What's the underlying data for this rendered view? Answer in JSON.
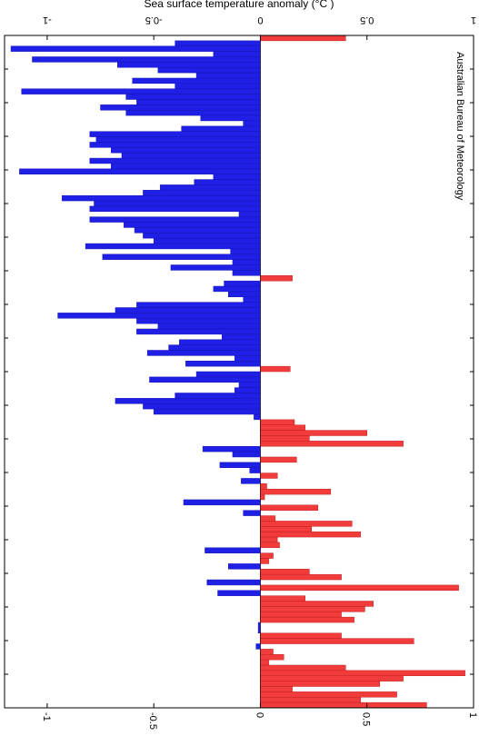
{
  "chart_data": {
    "type": "bar",
    "orientation": "horizontal",
    "title": "Sea surface temperature anomaly (°C )",
    "annotation": "Australian Bureau of Meteorology",
    "xlim": [
      -1.2,
      1.0
    ],
    "xticks": [
      -1,
      -0.5,
      0,
      0.5,
      1
    ],
    "xtick_labels": [
      "-1",
      "-0.5",
      "0",
      "0.5",
      "1"
    ],
    "grid": false,
    "colors": {
      "positive": "#f23c3c",
      "negative": "#1f1fe6"
    },
    "values": [
      0.4,
      -0.4,
      -1.17,
      -0.22,
      -1.07,
      -0.67,
      -0.48,
      -0.3,
      -0.6,
      -0.4,
      -1.12,
      -0.63,
      -0.58,
      -0.75,
      -0.63,
      -0.28,
      -0.08,
      -0.37,
      -0.8,
      -0.77,
      -0.8,
      -0.7,
      -0.65,
      -0.8,
      -0.7,
      -1.13,
      -0.22,
      -0.31,
      -0.47,
      -0.55,
      -0.93,
      -0.78,
      -0.8,
      -0.1,
      -0.8,
      -0.64,
      -0.59,
      -0.55,
      -0.5,
      -0.82,
      -0.14,
      -0.74,
      -0.13,
      -0.42,
      -0.13,
      0.15,
      -0.17,
      -0.22,
      -0.15,
      -0.08,
      -0.58,
      -0.68,
      -0.95,
      -0.58,
      -0.48,
      -0.58,
      -0.18,
      -0.38,
      -0.43,
      -0.53,
      -0.12,
      -0.35,
      0.14,
      -0.3,
      -0.52,
      -0.1,
      -0.12,
      -0.4,
      -0.68,
      -0.55,
      -0.5,
      -0.03,
      0.16,
      0.21,
      0.5,
      0.23,
      0.67,
      -0.27,
      -0.13,
      0.17,
      -0.19,
      -0.05,
      0.08,
      -0.09,
      0.03,
      0.33,
      0.02,
      -0.36,
      0.27,
      -0.08,
      0.07,
      0.43,
      0.24,
      0.47,
      0.08,
      0.09,
      -0.26,
      0.06,
      0.04,
      -0.15,
      0.23,
      0.38,
      -0.25,
      0.93,
      -0.2,
      0.21,
      0.53,
      0.49,
      0.38,
      0.44,
      -0.01,
      -0.01,
      0.38,
      0.72,
      -0.02,
      0.06,
      0.11,
      0.04,
      0.4,
      0.96,
      0.67,
      0.56,
      0.15,
      0.64,
      0.47,
      0.78
    ]
  }
}
